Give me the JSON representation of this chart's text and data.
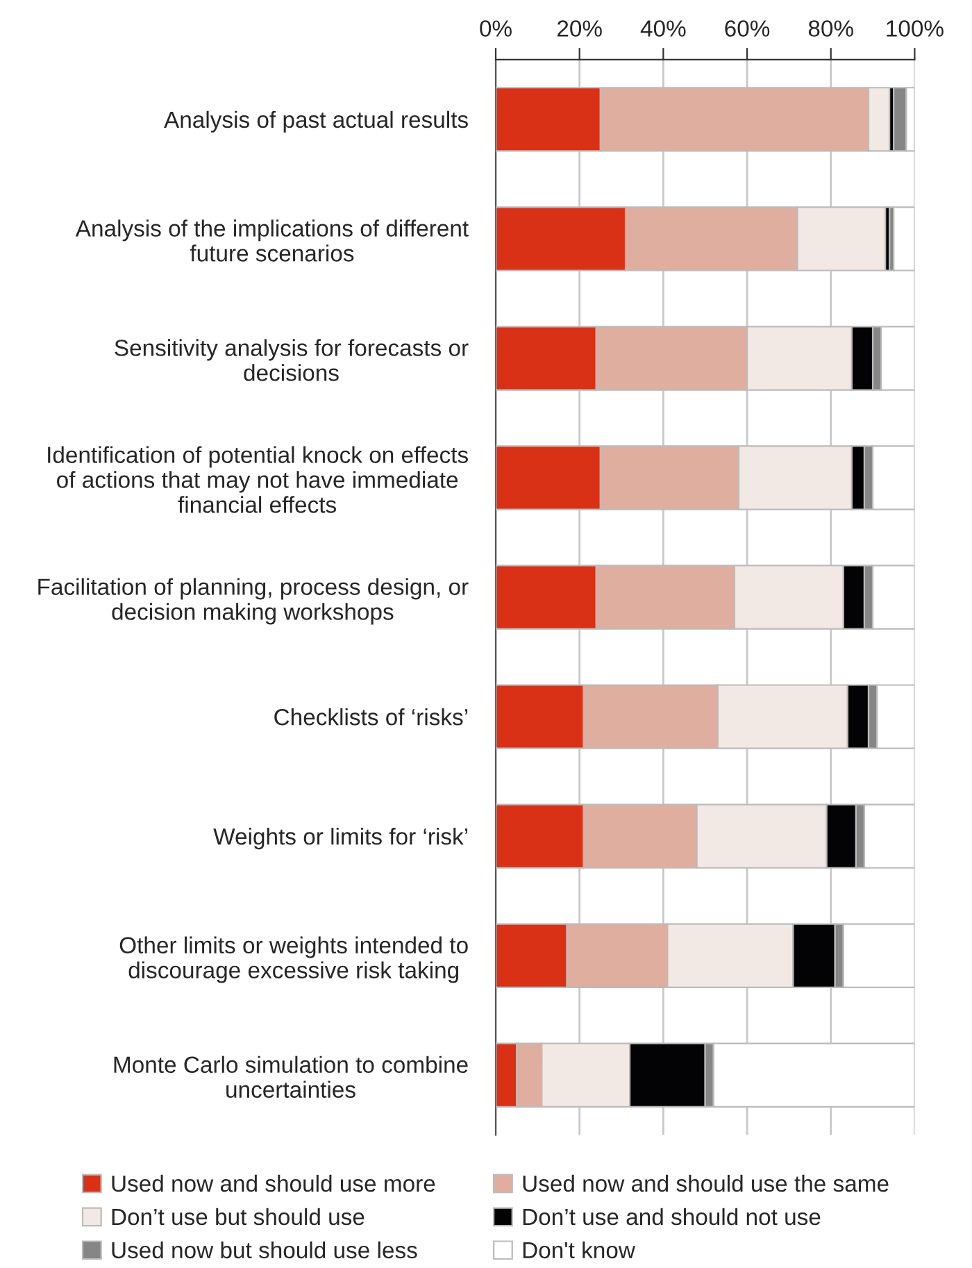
{
  "chart_data": {
    "type": "bar",
    "orientation": "horizontal",
    "stacked": true,
    "categories": [
      "Analysis of past actual results",
      "Analysis of the implications of different\nfuture scenarios",
      "Sensitivity analysis for forecasts or\ndecisions",
      "Identification of potential knock on effects\nof actions that may not have immediate\nfinancial effects",
      "Facilitation of planning, process design, or\ndecision making workshops",
      "Checklists of ‘risks’",
      "Weights or limits for ‘risk’",
      "Other limits or weights intended to\ndiscourage excessive risk taking",
      "Monte Carlo simulation to combine\nuncertainties"
    ],
    "series": [
      {
        "name": "Used now and should use more",
        "color": "#d93115",
        "values": [
          25,
          31,
          24,
          25,
          24,
          21,
          21,
          17,
          5
        ]
      },
      {
        "name": "Used now and should use the same",
        "color": "#e0ae9f",
        "values": [
          64,
          41,
          36,
          33,
          33,
          32,
          27,
          24,
          6
        ]
      },
      {
        "name": "Don’t use but should use",
        "color": "#f2e9e4",
        "values": [
          5,
          21,
          25,
          27,
          26,
          31,
          31,
          30,
          21
        ]
      },
      {
        "name": "Don’t use and should not use",
        "color": "#030305",
        "values": [
          1,
          1,
          5,
          3,
          5,
          5,
          7,
          10,
          18
        ]
      },
      {
        "name": "Used now but should use less",
        "color": "#868686",
        "values": [
          3,
          1,
          2,
          2,
          2,
          2,
          2,
          2,
          2
        ]
      },
      {
        "name": "Don't know",
        "color": "#ffffff",
        "values": [
          2,
          5,
          8,
          10,
          10,
          9,
          12,
          17,
          48
        ]
      }
    ],
    "xlim": [
      0,
      100
    ],
    "xticks": [
      {
        "value": 0,
        "label": "0%"
      },
      {
        "value": 20,
        "label": "20%"
      },
      {
        "value": 40,
        "label": "40%"
      },
      {
        "value": 60,
        "label": "60%"
      },
      {
        "value": 80,
        "label": "80%"
      },
      {
        "value": 100,
        "label": "100%"
      }
    ],
    "grid": "x",
    "legend": "bottom"
  }
}
